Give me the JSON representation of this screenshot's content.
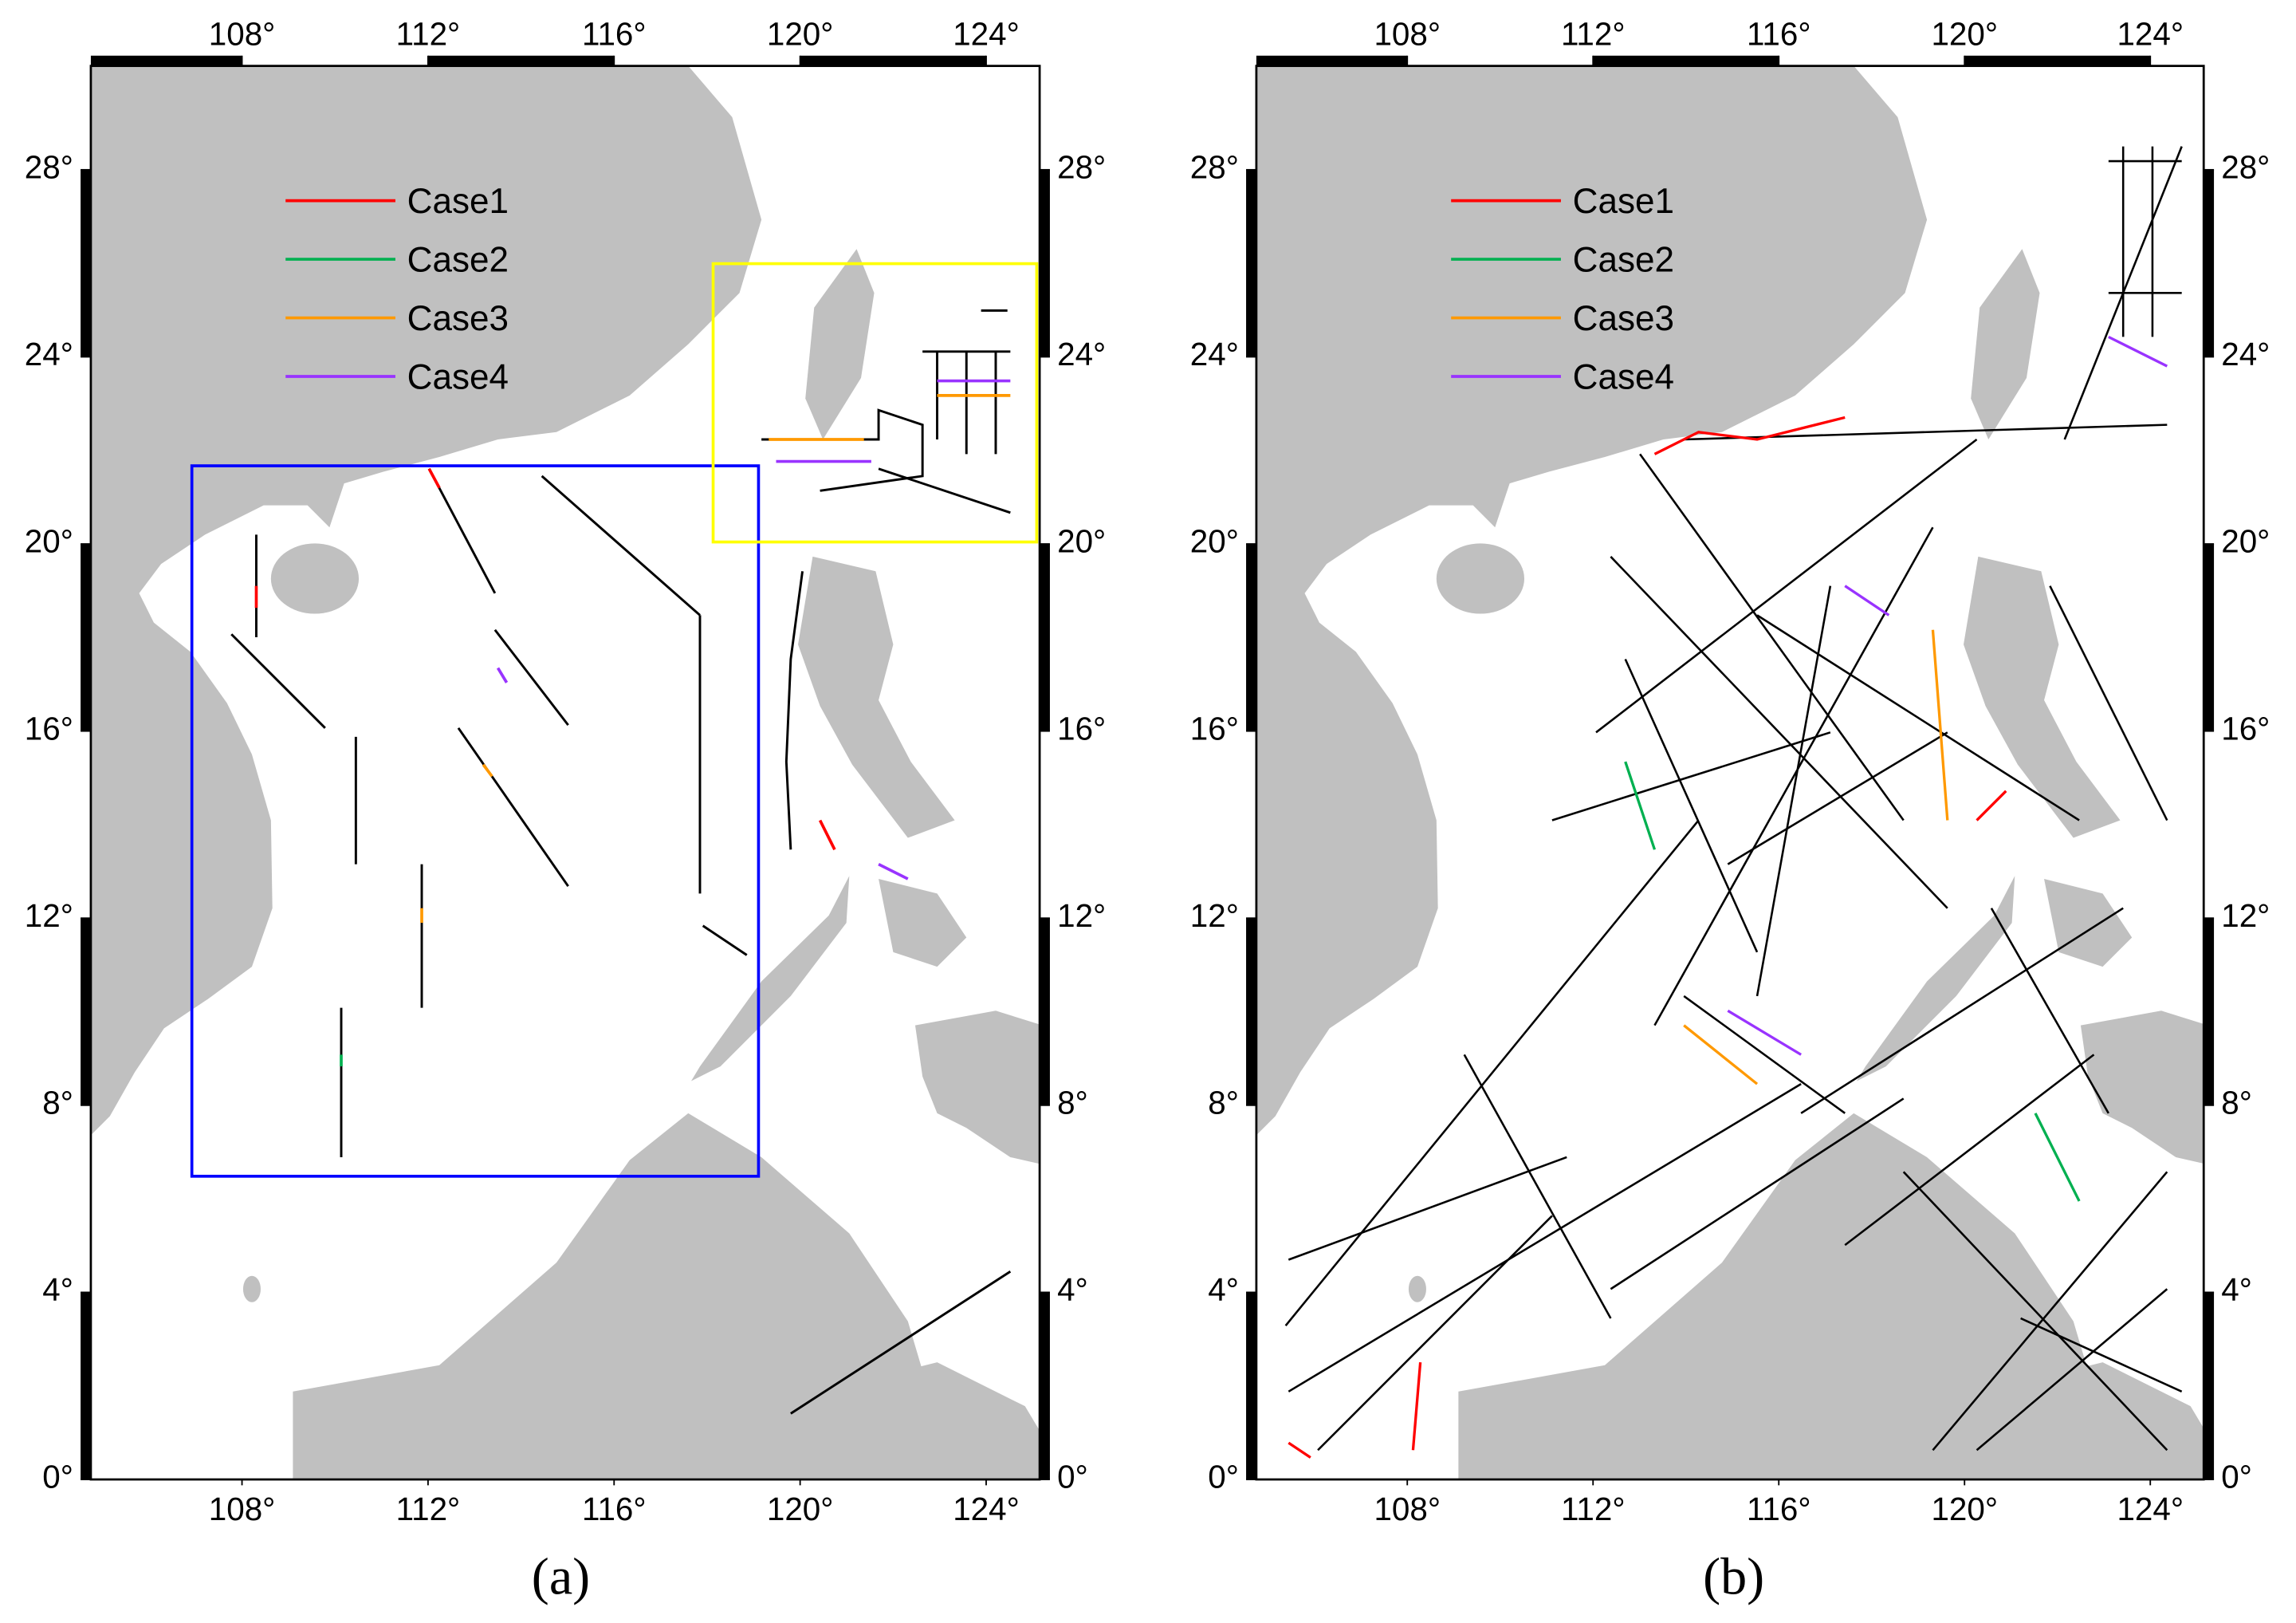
{
  "panels": [
    {
      "label": "(a)",
      "xlim": [
        104.75,
        125.15
      ],
      "ylim": [
        0,
        30.22
      ],
      "xticks": [
        {
          "value": 108,
          "label": "108°"
        },
        {
          "value": 112,
          "label": "112°"
        },
        {
          "value": 116,
          "label": "116°"
        },
        {
          "value": 120,
          "label": "120°"
        },
        {
          "value": 124,
          "label": "124°"
        }
      ],
      "yticks": [
        {
          "value": 0,
          "label": "0°"
        },
        {
          "value": 4,
          "label": "4°"
        },
        {
          "value": 8,
          "label": "8°"
        },
        {
          "value": 12,
          "label": "12°"
        },
        {
          "value": 16,
          "label": "16°"
        },
        {
          "value": 20,
          "label": "20°"
        },
        {
          "value": 24,
          "label": "24°"
        },
        {
          "value": 28,
          "label": "28°"
        }
      ],
      "legend": [
        {
          "name": "Case1",
          "color": "#ff0000"
        },
        {
          "name": "Case2",
          "color": "#00b050"
        },
        {
          "name": "Case3",
          "color": "#ff9900"
        },
        {
          "name": "Case4",
          "color": "#9933ff"
        }
      ]
    },
    {
      "label": "(b)",
      "xlim": [
        104.75,
        125.15
      ],
      "ylim": [
        0,
        30.22
      ],
      "xticks": [
        {
          "value": 108,
          "label": "108°"
        },
        {
          "value": 112,
          "label": "112°"
        },
        {
          "value": 116,
          "label": "116°"
        },
        {
          "value": 120,
          "label": "120°"
        },
        {
          "value": 124,
          "label": "124°"
        }
      ],
      "yticks": [
        {
          "value": 0,
          "label": "0°"
        },
        {
          "value": 4,
          "label": "4°"
        },
        {
          "value": 8,
          "label": "8°"
        },
        {
          "value": 12,
          "label": "12°"
        },
        {
          "value": 16,
          "label": "16°"
        },
        {
          "value": 20,
          "label": "20°"
        },
        {
          "value": 24,
          "label": "24°"
        },
        {
          "value": 28,
          "label": "28°"
        }
      ],
      "legend": [
        {
          "name": "Case1",
          "color": "#ff0000"
        },
        {
          "name": "Case2",
          "color": "#00b050"
        },
        {
          "name": "Case3",
          "color": "#ff9900"
        },
        {
          "name": "Case4",
          "color": "#9933ff"
        }
      ]
    }
  ]
}
